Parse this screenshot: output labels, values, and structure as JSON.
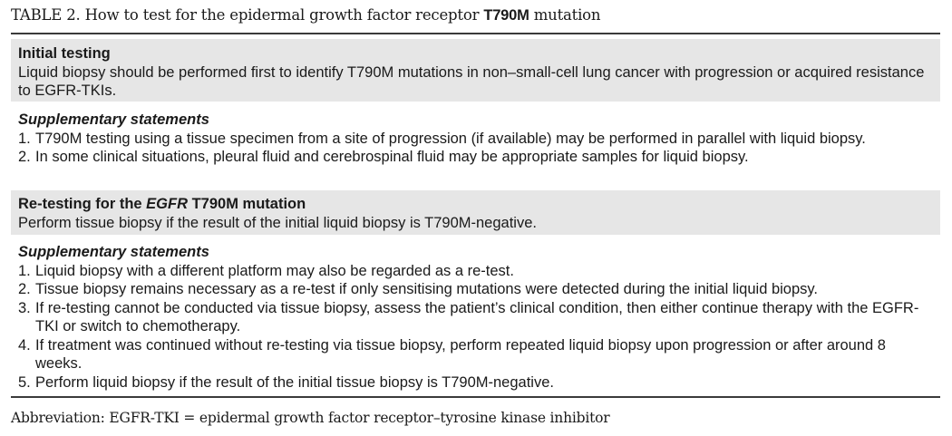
{
  "caption": {
    "label": "TABLE 2.",
    "text_before": " How to test for the epidermal growth factor receptor ",
    "text_bold": "T790M",
    "text_after": " mutation"
  },
  "sections": {
    "initial_testing": {
      "heading": "Initial testing",
      "body": "Liquid biopsy should be performed first to identify T790M mutations in non–small-cell lung cancer with progression or acquired resistance to EGFR-TKIs."
    },
    "supplementary_1": {
      "heading": "Supplementary statements",
      "items": [
        {
          "num": "1.",
          "text": "T790M testing using a tissue specimen from a site of progression (if available) may be performed in parallel with liquid biopsy."
        },
        {
          "num": "2.",
          "text": "In some clinical situations, pleural fluid and cerebrospinal fluid may be appropriate samples for liquid biopsy."
        }
      ]
    },
    "retesting": {
      "heading_before": "Re-testing for the ",
      "heading_italic": "EGFR",
      "heading_after": " T790M mutation",
      "body": "Perform tissue biopsy if the result of the initial liquid biopsy is T790M-negative."
    },
    "supplementary_2": {
      "heading": "Supplementary statements",
      "items": [
        {
          "num": "1.",
          "text": "Liquid biopsy with a different platform may also be regarded as a re-test."
        },
        {
          "num": "2.",
          "text": "Tissue biopsy remains necessary as a re-test if only sensitising mutations were detected during the initial liquid biopsy."
        },
        {
          "num": "3.",
          "text": "If re-testing cannot be conducted via tissue biopsy, assess the patient’s clinical condition, then either continue therapy with the EGFR-TKI or switch to chemotherapy."
        },
        {
          "num": "4.",
          "text": "If treatment was continued without re-testing via tissue biopsy, perform repeated liquid biopsy upon progression or after around 8 weeks."
        },
        {
          "num": "5.",
          "text": "Perform liquid biopsy if the result of the initial tissue biopsy is T790M-negative."
        }
      ]
    }
  },
  "footnote": "Abbreviation: EGFR-TKI = epidermal growth factor receptor–tyrosine kinase inhibitor",
  "colors": {
    "shaded_row": "#e6e6e6",
    "rule": "#3a3a3a",
    "text": "#1a1a1a"
  }
}
